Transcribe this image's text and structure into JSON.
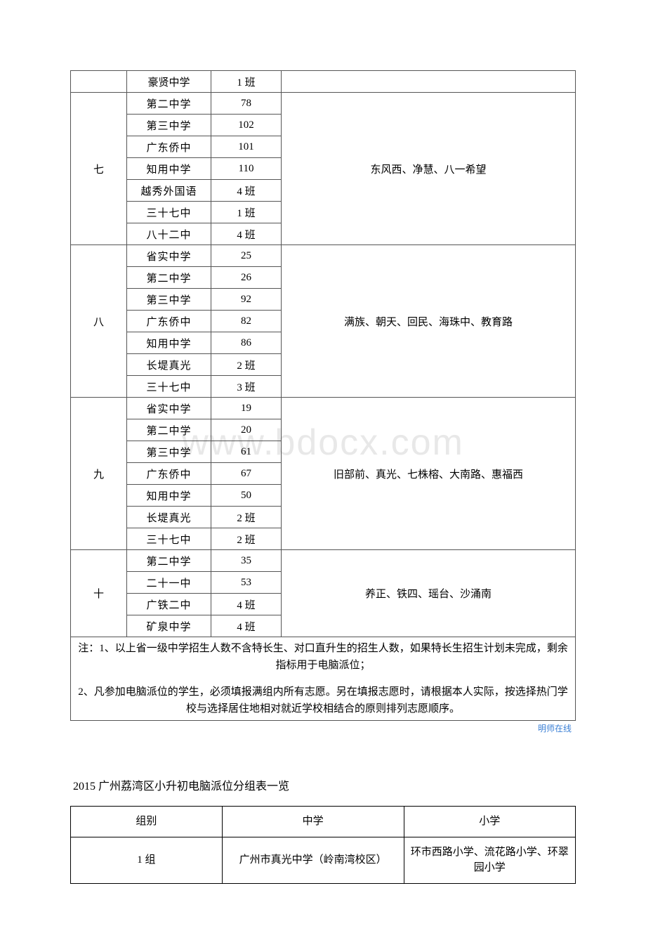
{
  "watermark": "www.bdocx.com",
  "table1": {
    "rows": [
      {
        "group": "",
        "school": "豪贤中学",
        "count": "1 班",
        "primary": ""
      },
      {
        "group": "七",
        "school": "第二中学",
        "count": "78",
        "primary": "东风西、净慧、八一希望",
        "span": 7
      },
      {
        "group": "",
        "school": "第三中学",
        "count": "102"
      },
      {
        "group": "",
        "school": "广东侨中",
        "count": "101"
      },
      {
        "group": "",
        "school": "知用中学",
        "count": "110"
      },
      {
        "group": "",
        "school": "越秀外国语",
        "count": "4 班"
      },
      {
        "group": "",
        "school": "三十七中",
        "count": "1 班"
      },
      {
        "group": "",
        "school": "八十二中",
        "count": "4 班"
      },
      {
        "group": "八",
        "school": "省实中学",
        "count": "25",
        "primary": "满族、朝天、回民、海珠中、教育路",
        "span": 7
      },
      {
        "group": "",
        "school": "第二中学",
        "count": "26"
      },
      {
        "group": "",
        "school": "第三中学",
        "count": "92"
      },
      {
        "group": "",
        "school": "广东侨中",
        "count": "82"
      },
      {
        "group": "",
        "school": "知用中学",
        "count": "86"
      },
      {
        "group": "",
        "school": "长堤真光",
        "count": "2 班"
      },
      {
        "group": "",
        "school": "三十七中",
        "count": "3 班"
      },
      {
        "group": "九",
        "school": "省实中学",
        "count": "19",
        "primary": "旧部前、真光、七株榕、大南路、惠福西",
        "span": 7
      },
      {
        "group": "",
        "school": "第二中学",
        "count": "20"
      },
      {
        "group": "",
        "school": "第三中学",
        "count": "61"
      },
      {
        "group": "",
        "school": "广东侨中",
        "count": "67"
      },
      {
        "group": "",
        "school": "知用中学",
        "count": "50"
      },
      {
        "group": "",
        "school": "长堤真光",
        "count": "2 班"
      },
      {
        "group": "",
        "school": "三十七中",
        "count": "2 班"
      },
      {
        "group": "十",
        "school": "第二中学",
        "count": "35",
        "primary": "养正、铁四、瑶台、沙涌南",
        "span": 4
      },
      {
        "group": "",
        "school": "二十一中",
        "count": "53"
      },
      {
        "group": "",
        "school": "广铁二中",
        "count": "4 班"
      },
      {
        "group": "",
        "school": "矿泉中学",
        "count": "4 班"
      }
    ],
    "note1": "注：1、以上省一级中学招生人数不含特长生、对口直升生的招生人数，如果特长生招生计划未完成，剩余指标用于电脑派位；",
    "note2": "2、凡参加电脑派位的学生，必须填报满组内所有志愿。另在填报志愿时，请根据本人实际，按选择热门学校与选择居住地相对就近学校相结合的原则排列志愿顺序。",
    "brand": "明师在线"
  },
  "section2_title": "2015 广州荔湾区小升初电脑派位分组表一览",
  "table2": {
    "headers": {
      "group": "组别",
      "mid": "中学",
      "pri": "小学"
    },
    "row1": {
      "group": "1 组",
      "mid": "广州市真光中学（岭南湾校区）",
      "pri": "环市西路小学、流花路小学、环翠园小学"
    }
  }
}
